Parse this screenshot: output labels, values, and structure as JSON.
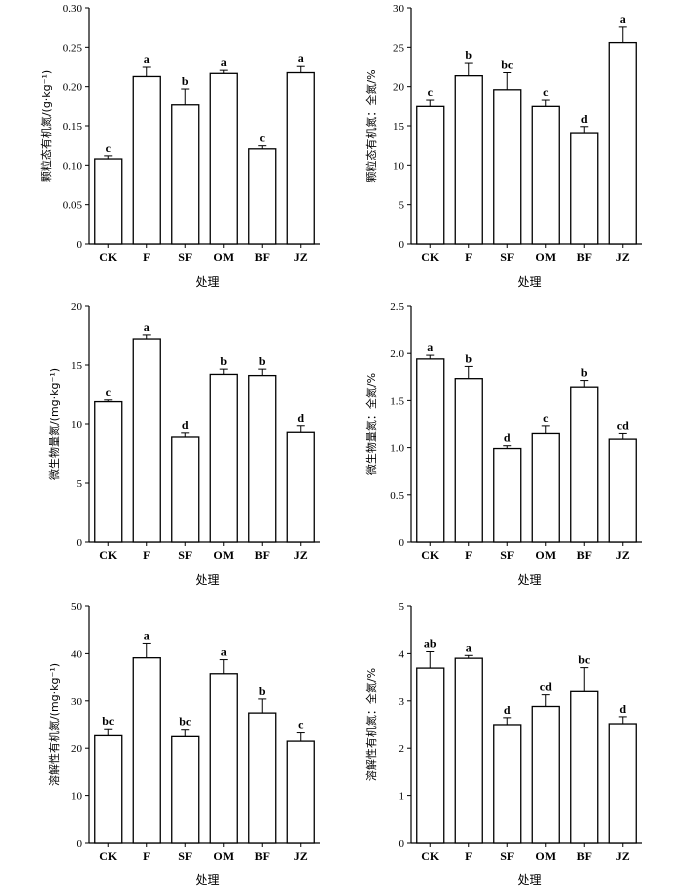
{
  "chart_data": [
    {
      "type": "bar",
      "ylabel": "颗粒态有机氮/(g·kg⁻¹)",
      "xlabel": "处理",
      "categories": [
        "CK",
        "F",
        "SF",
        "OM",
        "BF",
        "JZ"
      ],
      "values": [
        0.108,
        0.213,
        0.177,
        0.217,
        0.121,
        0.218
      ],
      "errors": [
        0.004,
        0.012,
        0.02,
        0.004,
        0.004,
        0.008
      ],
      "letters": [
        "c",
        "a",
        "b",
        "a",
        "c",
        "a"
      ],
      "ylim": [
        0,
        0.3
      ],
      "yticks": [
        0,
        0.05,
        0.1,
        0.15,
        0.2,
        0.25,
        0.3
      ],
      "ytick_labels": [
        "0",
        "0.05",
        "0.10",
        "0.15",
        "0.20",
        "0.25",
        "0.30"
      ]
    },
    {
      "type": "bar",
      "ylabel": "颗粒态有机氮：全氮/%",
      "xlabel": "处理",
      "categories": [
        "CK",
        "F",
        "SF",
        "OM",
        "BF",
        "JZ"
      ],
      "values": [
        17.5,
        21.4,
        19.6,
        17.5,
        14.1,
        25.6
      ],
      "errors": [
        0.8,
        1.6,
        2.2,
        0.8,
        0.8,
        2.0
      ],
      "letters": [
        "c",
        "b",
        "bc",
        "c",
        "d",
        "a"
      ],
      "ylim": [
        0,
        30
      ],
      "yticks": [
        0,
        5,
        10,
        15,
        20,
        25,
        30
      ],
      "ytick_labels": [
        "0",
        "5",
        "10",
        "15",
        "20",
        "25",
        "30"
      ]
    },
    {
      "type": "bar",
      "ylabel": "微生物量氮/(mg·kg⁻¹)",
      "xlabel": "处理",
      "categories": [
        "CK",
        "F",
        "SF",
        "OM",
        "BF",
        "JZ"
      ],
      "values": [
        11.9,
        17.2,
        8.9,
        14.2,
        14.1,
        9.3
      ],
      "errors": [
        0.15,
        0.35,
        0.35,
        0.45,
        0.55,
        0.55
      ],
      "letters": [
        "c",
        "a",
        "d",
        "b",
        "b",
        "d"
      ],
      "ylim": [
        0,
        20
      ],
      "yticks": [
        0,
        5,
        10,
        15,
        20
      ],
      "ytick_labels": [
        "0",
        "5",
        "10",
        "15",
        "20"
      ]
    },
    {
      "type": "bar",
      "ylabel": "微生物量氮：全氮/%",
      "xlabel": "处理",
      "categories": [
        "CK",
        "F",
        "SF",
        "OM",
        "BF",
        "JZ"
      ],
      "values": [
        1.94,
        1.73,
        0.99,
        1.15,
        1.64,
        1.09
      ],
      "errors": [
        0.04,
        0.13,
        0.03,
        0.08,
        0.07,
        0.06
      ],
      "letters": [
        "a",
        "b",
        "d",
        "c",
        "b",
        "cd"
      ],
      "ylim": [
        0,
        2.5
      ],
      "yticks": [
        0,
        0.5,
        1.0,
        1.5,
        2.0,
        2.5
      ],
      "ytick_labels": [
        "0",
        "0.5",
        "1.0",
        "1.5",
        "2.0",
        "2.5"
      ]
    },
    {
      "type": "bar",
      "ylabel": "溶解性有机氮/(mg·kg⁻¹)",
      "xlabel": "处理",
      "categories": [
        "CK",
        "F",
        "SF",
        "OM",
        "BF",
        "JZ"
      ],
      "values": [
        22.7,
        39.1,
        22.5,
        35.7,
        27.4,
        21.5
      ],
      "errors": [
        1.3,
        3.0,
        1.4,
        3.0,
        3.0,
        1.8
      ],
      "letters": [
        "bc",
        "a",
        "bc",
        "a",
        "b",
        "c"
      ],
      "ylim": [
        0,
        50
      ],
      "yticks": [
        0,
        10,
        20,
        30,
        40,
        50
      ],
      "ytick_labels": [
        "0",
        "10",
        "20",
        "30",
        "40",
        "50"
      ]
    },
    {
      "type": "bar",
      "ylabel": "溶解性有机氮：全氮/%",
      "xlabel": "处理",
      "categories": [
        "CK",
        "F",
        "SF",
        "OM",
        "BF",
        "JZ"
      ],
      "values": [
        3.69,
        3.9,
        2.49,
        2.88,
        3.2,
        2.51
      ],
      "errors": [
        0.35,
        0.06,
        0.15,
        0.25,
        0.5,
        0.15
      ],
      "letters": [
        "ab",
        "a",
        "d",
        "cd",
        "bc",
        "d"
      ],
      "ylim": [
        0,
        5
      ],
      "yticks": [
        0,
        1,
        2,
        3,
        4,
        5
      ],
      "ytick_labels": [
        "0",
        "1",
        "2",
        "3",
        "4",
        "5"
      ]
    }
  ]
}
